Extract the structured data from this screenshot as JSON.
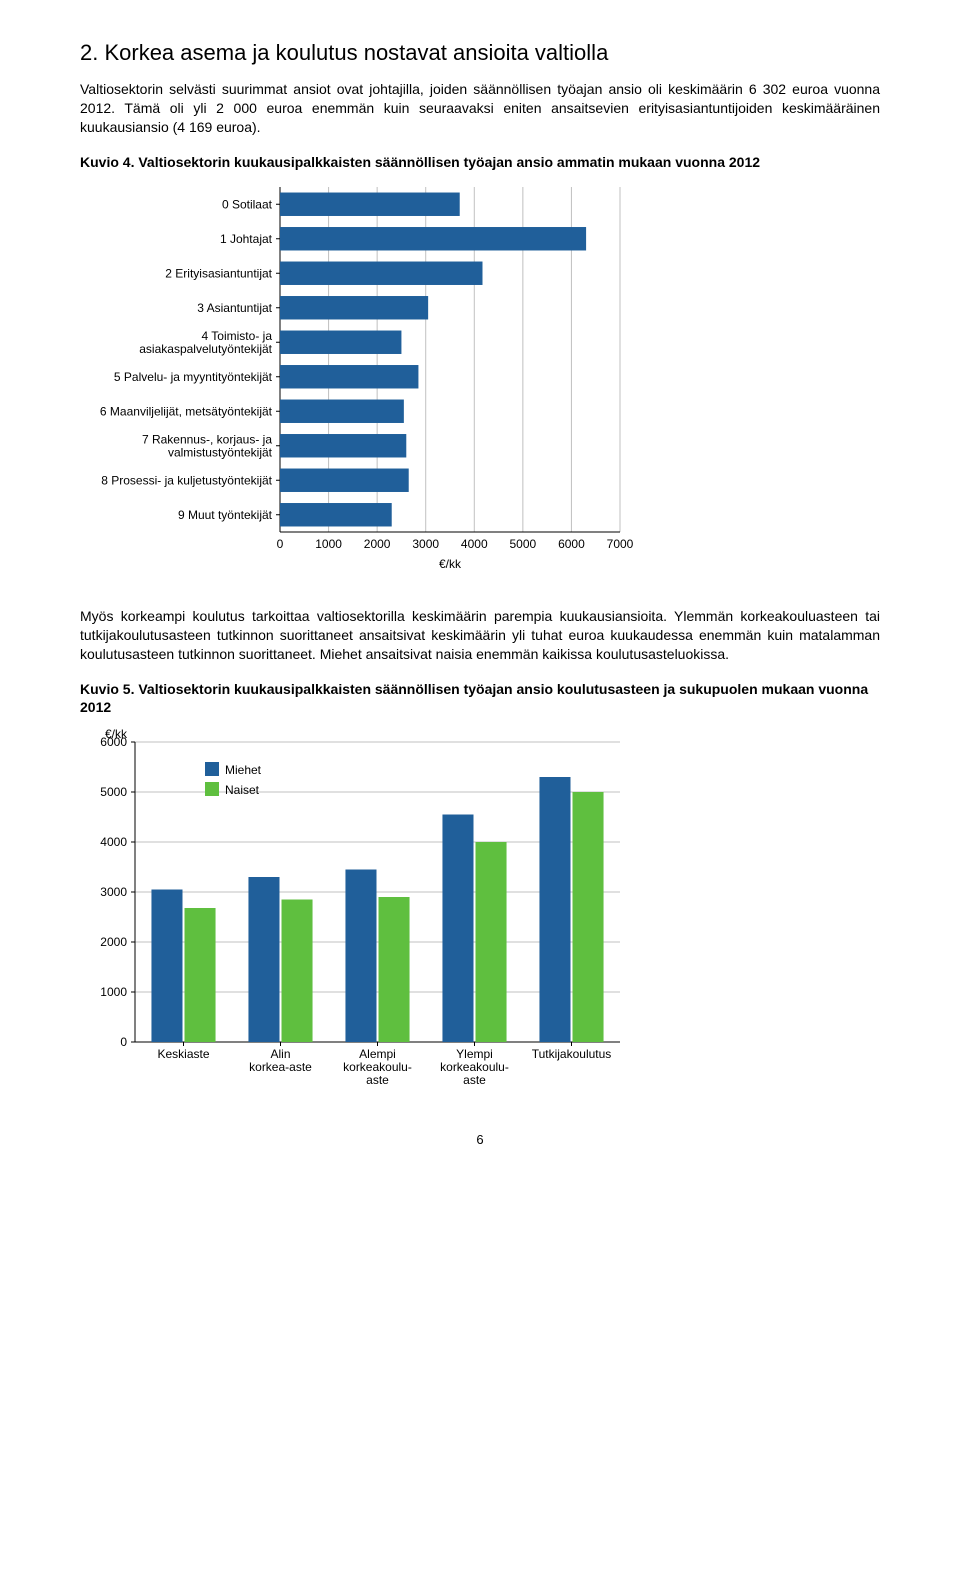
{
  "section": {
    "title": "2. Korkea asema ja koulutus nostavat ansioita valtiolla",
    "para1": "Valtiosektorin selvästi suurimmat ansiot ovat johtajilla, joiden säännöllisen työajan ansio oli keskimäärin 6 302 euroa vuonna 2012. Tämä oli yli 2 000 euroa enemmän kuin seuraavaksi eniten ansaitsevien erityisasiantuntijoiden keskimääräinen kuukausiansio (4 169 euroa).",
    "para2": "Myös korkeampi koulutus tarkoittaa valtiosektorilla keskimäärin parempia kuukausiansioita. Ylemmän korkeakouluasteen tai tutkijakoulutusasteen tutkinnon suorittaneet ansaitsivat keskimäärin yli tuhat euroa kuukaudessa enemmän kuin matalamman koulutusasteen tutkinnon suorittaneet. Miehet ansaitsivat naisia enemmän kaikissa koulutusasteluokissa."
  },
  "fig4": {
    "caption": "Kuvio 4. Valtiosektorin kuukausipalkkaisten säännöllisen työajan ansio ammatin mukaan vuonna 2012",
    "type": "bar-horizontal",
    "categories": [
      "0 Sotilaat",
      "1 Johtajat",
      "2 Erityisasiantuntijat",
      "3 Asiantuntijat",
      "4 Toimisto- ja\nasiakaspalvelutyöntekijät",
      "5 Palvelu- ja myyntityöntekijät",
      "6 Maanviljelijät, metsätyöntekijät",
      "7 Rakennus-, korjaus- ja\nvalmistustyöntekijät",
      "8 Prosessi- ja kuljetustyöntekijät",
      "9 Muut työntekijät"
    ],
    "values": [
      3700,
      6302,
      4169,
      3050,
      2500,
      2850,
      2550,
      2600,
      2650,
      2300
    ],
    "bar_color": "#205f9a",
    "xlim": [
      0,
      7000
    ],
    "xtick_step": 1000,
    "x_unit": "€/kk",
    "background": "#ffffff",
    "grid_color": "#c0c0c0",
    "label_fontsize": 12
  },
  "fig5": {
    "caption": "Kuvio 5. Valtiosektorin kuukausipalkkaisten säännöllisen työajan ansio koulutusasteen ja sukupuolen mukaan vuonna 2012",
    "type": "bar-grouped",
    "categories": [
      "Keskiaste",
      "Alin\nkorkea-aste",
      "Alempi\nkorkeakoulu-\naste",
      "Ylempi\nkorkeakoulu-\naste",
      "Tutkijakoulutus"
    ],
    "series": [
      {
        "name": "Miehet",
        "color": "#205f9a",
        "values": [
          3050,
          3300,
          3450,
          4550,
          5300
        ]
      },
      {
        "name": "Naiset",
        "color": "#5fbf3f",
        "values": [
          2680,
          2850,
          2900,
          4000,
          5000
        ]
      }
    ],
    "ylim": [
      0,
      6000
    ],
    "ytick_step": 1000,
    "y_unit": "€/kk",
    "background": "#ffffff",
    "grid_color": "#c0c0c0",
    "label_fontsize": 12
  },
  "page_number": "6"
}
